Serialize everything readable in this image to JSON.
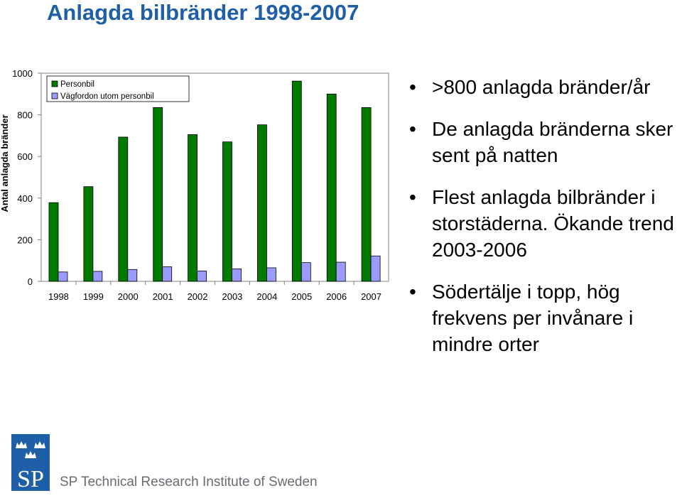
{
  "title": "Anlagda bilbränder 1998-2007",
  "chart_data": {
    "type": "bar",
    "categories": [
      "1998",
      "1999",
      "2000",
      "2001",
      "2002",
      "2003",
      "2004",
      "2005",
      "2006",
      "2007"
    ],
    "series": [
      {
        "name": "Personbil",
        "color": "#007a00",
        "values": [
          378,
          455,
          693,
          835,
          705,
          670,
          752,
          962,
          900,
          835
        ]
      },
      {
        "name": "Vägfordon utom personbil",
        "color": "#9a9aff",
        "values": [
          45,
          48,
          57,
          70,
          50,
          60,
          65,
          90,
          92,
          122
        ]
      }
    ],
    "ylabel": "Antal anlagda bränder",
    "ylim": [
      0,
      1000
    ],
    "yticks": [
      "0",
      "200",
      "400",
      "600",
      "800",
      "1000"
    ],
    "legend_position": "top-left",
    "grid": false
  },
  "bullets": [
    ">800 anlagda bränder/år",
    "De anlagda bränderna sker sent på natten",
    "Flest anlagda bilbränder i storstäderna. Ökande trend 2003-2006",
    "Södertälje i topp, hög frekvens per invånare i mindre orter"
  ],
  "footer": {
    "logo_text": "SP",
    "org_name": "SP Technical Research Institute of Sweden",
    "logo_color": "#1f5fa8"
  }
}
